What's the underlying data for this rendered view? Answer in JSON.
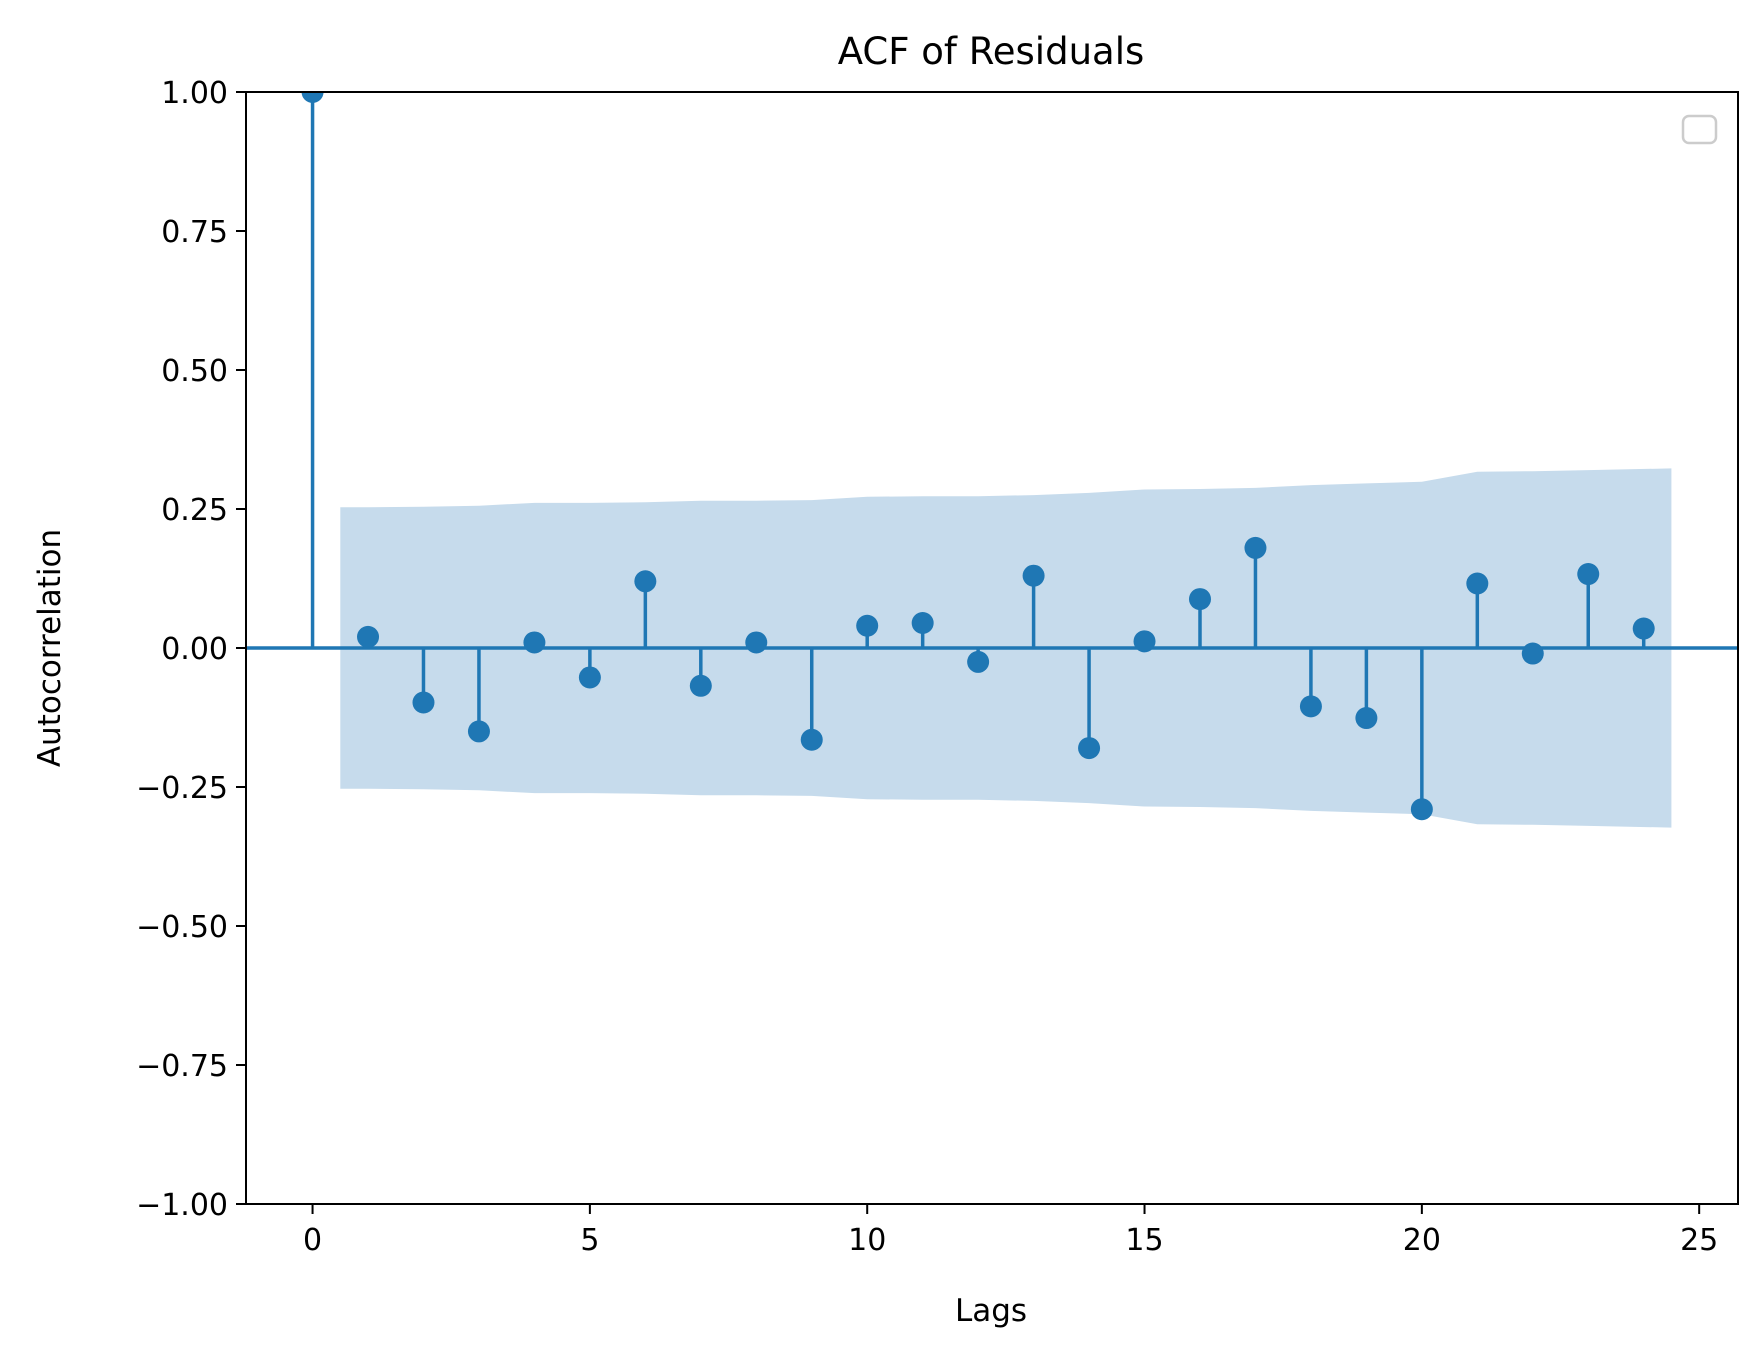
{
  "chart_data": {
    "type": "stem",
    "title": "ACF of Residuals",
    "xlabel": "Lags",
    "ylabel": "Autocorrelation",
    "xlim": [
      -1.2,
      25.7
    ],
    "ylim": [
      -1.0,
      1.0
    ],
    "xticks": [
      0,
      5,
      10,
      15,
      20,
      25
    ],
    "yticks": [
      1.0,
      0.75,
      0.5,
      0.25,
      0.0,
      -0.25,
      -0.5,
      -0.75,
      -1.0
    ],
    "ytick_labels": [
      "1.00",
      "0.75",
      "0.50",
      "0.25",
      "0.00",
      "−0.25",
      "−0.50",
      "−0.75",
      "−1.00"
    ],
    "lags": [
      0,
      1,
      2,
      3,
      4,
      5,
      6,
      7,
      8,
      9,
      10,
      11,
      12,
      13,
      14,
      15,
      16,
      17,
      18,
      19,
      20,
      21,
      22,
      23,
      24
    ],
    "acf": [
      1.0,
      0.02,
      -0.098,
      -0.15,
      0.01,
      -0.053,
      0.12,
      -0.068,
      0.01,
      -0.165,
      0.04,
      0.045,
      -0.025,
      0.13,
      -0.18,
      0.012,
      0.088,
      0.18,
      -0.105,
      -0.126,
      -0.29,
      0.116,
      -0.01,
      0.133,
      0.035
    ],
    "confint_x": [
      0.5,
      1,
      2,
      3,
      4,
      5,
      6,
      7,
      8,
      9,
      10,
      11,
      12,
      13,
      14,
      15,
      16,
      17,
      18,
      19,
      20,
      21,
      22,
      23,
      24.5
    ],
    "confint_upper": [
      0.253,
      0.253,
      0.254,
      0.256,
      0.261,
      0.261,
      0.262,
      0.265,
      0.265,
      0.266,
      0.272,
      0.273,
      0.273,
      0.275,
      0.279,
      0.285,
      0.286,
      0.288,
      0.293,
      0.296,
      0.299,
      0.317,
      0.318,
      0.32,
      0.323
    ],
    "legend": {
      "placement": "top-right",
      "entries": []
    },
    "colors": {
      "stem": "#1f77b4",
      "confint": "#c6dbec",
      "axis": "#000000"
    },
    "grid": false
  }
}
